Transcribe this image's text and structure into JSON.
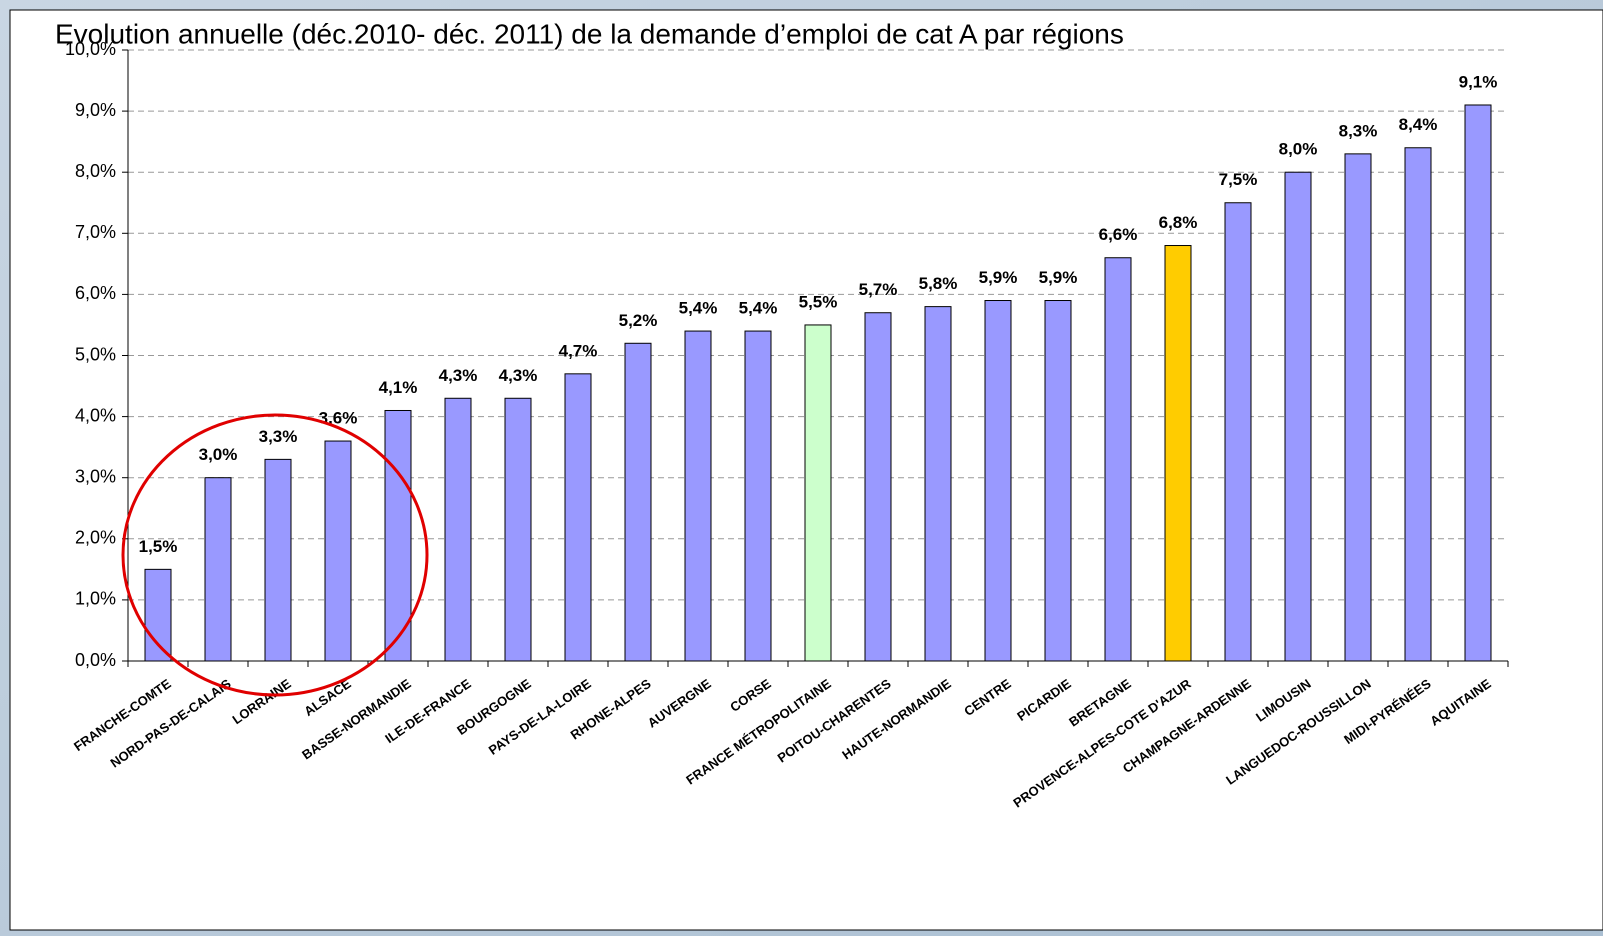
{
  "chart_data": {
    "type": "bar",
    "title": "Evolution annuelle (déc.2010- déc. 2011) de la demande d’emploi de cat A par régions",
    "categories": [
      "FRANCHE-COMTE",
      "NORD-PAS-DE-CALAIS",
      "LORRAINE",
      "ALSACE",
      "BASSE-NORMANDIE",
      "ILE-DE-FRANCE",
      "BOURGOGNE",
      "PAYS-DE-LA-LOIRE",
      "RHONE-ALPES",
      "AUVERGNE",
      "CORSE",
      "FRANCE MÉTROPOLITAINE",
      "POITOU-CHARENTES",
      "HAUTE-NORMANDIE",
      "CENTRE",
      "PICARDIE",
      "BRETAGNE",
      "PROVENCE-ALPES-COTE D'AZUR",
      "CHAMPAGNE-ARDENNE",
      "LIMOUSIN",
      "LANGUEDOC-ROUSSILLON",
      "MIDI-PYRÉNÉES",
      "AQUITAINE"
    ],
    "values": [
      1.5,
      3.0,
      3.3,
      3.6,
      4.1,
      4.3,
      4.3,
      4.7,
      5.2,
      5.4,
      5.4,
      5.5,
      5.7,
      5.8,
      5.9,
      5.9,
      6.6,
      6.8,
      7.5,
      8.0,
      8.3,
      8.4,
      9.1
    ],
    "value_labels": [
      "1,5%",
      "3,0%",
      "3,3%",
      "3,6%",
      "4,1%",
      "4,3%",
      "4,3%",
      "4,7%",
      "5,2%",
      "5,4%",
      "5,4%",
      "5,5%",
      "5,7%",
      "5,8%",
      "5,9%",
      "5,9%",
      "6,6%",
      "6,8%",
      "7,5%",
      "8,0%",
      "8,3%",
      "8,4%",
      "9,1%"
    ],
    "colors": [
      "#9999ff",
      "#9999ff",
      "#9999ff",
      "#9999ff",
      "#9999ff",
      "#9999ff",
      "#9999ff",
      "#9999ff",
      "#9999ff",
      "#9999ff",
      "#9999ff",
      "#ccffcc",
      "#9999ff",
      "#9999ff",
      "#9999ff",
      "#9999ff",
      "#9999ff",
      "#ffcc00",
      "#9999ff",
      "#9999ff",
      "#9999ff",
      "#9999ff",
      "#9999ff"
    ],
    "ylim": [
      0,
      10
    ],
    "yticks": [
      {
        "value": 0,
        "label": "0,0%"
      },
      {
        "value": 1,
        "label": "1,0%"
      },
      {
        "value": 2,
        "label": "2,0%"
      },
      {
        "value": 3,
        "label": "3,0%"
      },
      {
        "value": 4,
        "label": "4,0%"
      },
      {
        "value": 5,
        "label": "5,0%"
      },
      {
        "value": 6,
        "label": "6,0%"
      },
      {
        "value": 7,
        "label": "7,0%"
      },
      {
        "value": 8,
        "label": "8,0%"
      },
      {
        "value": 9,
        "label": "9,0%"
      },
      {
        "value": 10,
        "label": "10,0%"
      }
    ],
    "grid": true
  }
}
